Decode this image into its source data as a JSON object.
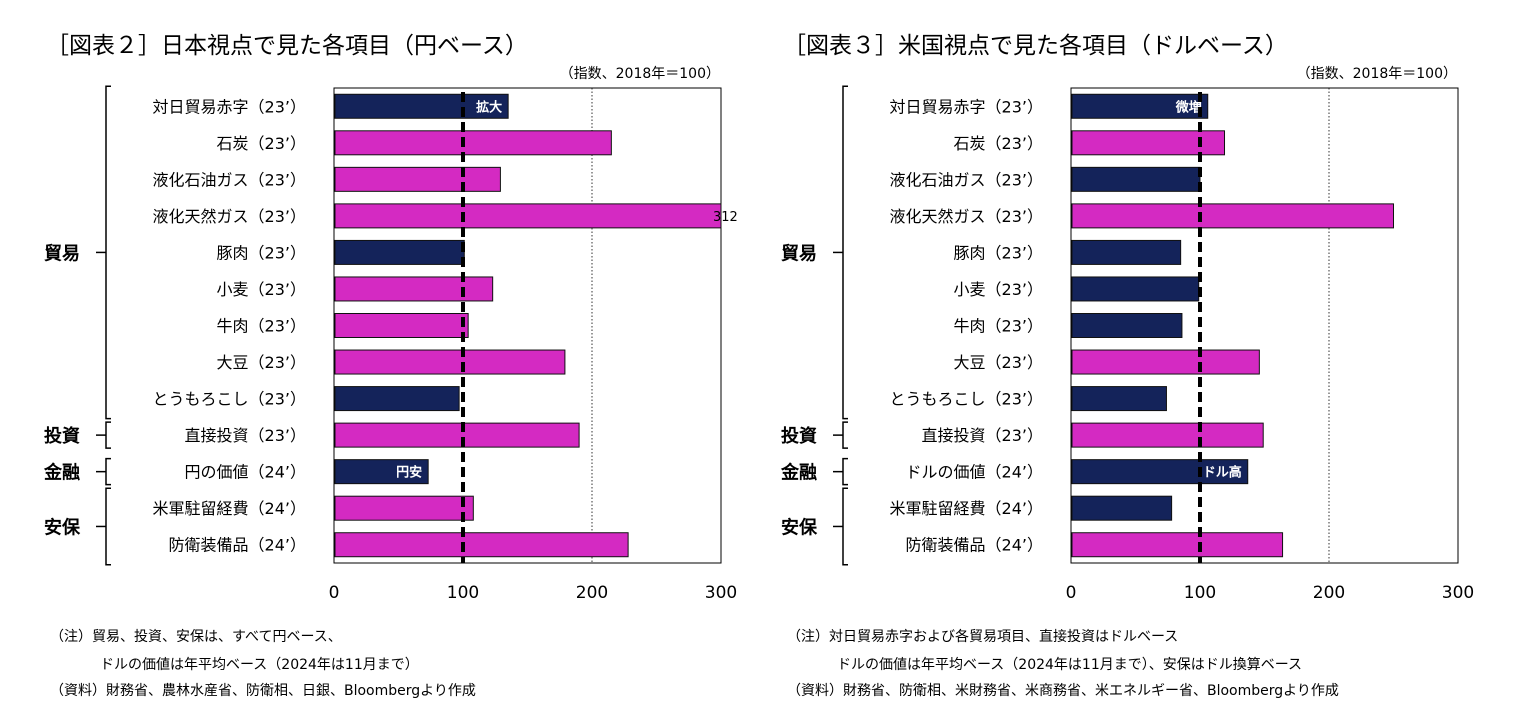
{
  "colors": {
    "navy": "#14235a",
    "magenta": "#d42ac2",
    "baseline": "#000000"
  },
  "chart_data": [
    {
      "type": "bar",
      "orientation": "horizontal",
      "title": "［図表２］日本視点で見た各項目（円ベース）",
      "unit_note": "（指数、2018年＝100）",
      "xlim": [
        0,
        300
      ],
      "xticks": [
        "0",
        "100",
        "200",
        "300"
      ],
      "reference_line": 100,
      "gridlines": [
        200
      ],
      "categories": [
        "対日貿易赤字（23’）",
        "石炭（23’）",
        "液化石油ガス（23’）",
        "液化天然ガス（23’）",
        "豚肉（23’）",
        "小麦（23’）",
        "牛肉（23’）",
        "大豆（23’）",
        "とうもろこし（23’）",
        "直接投資（23’）",
        "円の価値（24’）",
        "米軍駐留経費（24’）",
        "防衛装備品（24’）"
      ],
      "values": [
        135,
        215,
        129,
        312,
        101,
        123,
        104,
        179,
        97,
        190,
        73,
        108,
        228
      ],
      "colors": [
        "navy",
        "magenta",
        "magenta",
        "magenta",
        "navy",
        "magenta",
        "magenta",
        "magenta",
        "navy",
        "magenta",
        "navy",
        "magenta",
        "magenta"
      ],
      "value_labels": [
        {
          "index": 3,
          "text": "312"
        }
      ],
      "bar_labels": [
        {
          "index": 0,
          "text": "拡大"
        },
        {
          "index": 10,
          "text": "円安"
        }
      ],
      "groups": [
        {
          "label": "貿易",
          "from": 0,
          "to": 8
        },
        {
          "label": "投資",
          "from": 9,
          "to": 9
        },
        {
          "label": "金融",
          "from": 10,
          "to": 10
        },
        {
          "label": "安保",
          "from": 11,
          "to": 12
        }
      ],
      "notes": [
        "（注）貿易、投資、安保は、すべて円ベース、",
        "ドルの価値は年平均ベース（2024年は11月まで）",
        "（資料）財務省、農林水産省、防衛相、日銀、Bloombergより作成"
      ]
    },
    {
      "type": "bar",
      "orientation": "horizontal",
      "title": "［図表３］米国視点で見た各項目（ドルベース）",
      "unit_note": "（指数、2018年＝100）",
      "xlim": [
        0,
        300
      ],
      "xticks": [
        "0",
        "100",
        "200",
        "300"
      ],
      "reference_line": 100,
      "gridlines": [
        200
      ],
      "categories": [
        "対日貿易赤字（23’）",
        "石炭（23’）",
        "液化石油ガス（23’）",
        "液化天然ガス（23’）",
        "豚肉（23’）",
        "小麦（23’）",
        "牛肉（23’）",
        "大豆（23’）",
        "とうもろこし（23’）",
        "直接投資（23’）",
        "ドルの価値（24’）",
        "米軍駐留経費（24’）",
        "防衛装備品（24’）"
      ],
      "values": [
        106,
        119,
        100,
        250,
        85,
        99,
        86,
        146,
        74,
        149,
        137,
        78,
        164
      ],
      "colors": [
        "navy",
        "magenta",
        "navy",
        "magenta",
        "navy",
        "navy",
        "navy",
        "magenta",
        "navy",
        "magenta",
        "navy",
        "navy",
        "magenta"
      ],
      "value_labels": [],
      "bar_labels": [
        {
          "index": 0,
          "text": "微増"
        },
        {
          "index": 10,
          "text": "ドル高"
        }
      ],
      "groups": [
        {
          "label": "貿易",
          "from": 0,
          "to": 8
        },
        {
          "label": "投資",
          "from": 9,
          "to": 9
        },
        {
          "label": "金融",
          "from": 10,
          "to": 10
        },
        {
          "label": "安保",
          "from": 11,
          "to": 12
        }
      ],
      "notes": [
        "（注）対日貿易赤字および各貿易項目、直接投資はドルベース",
        "ドルの価値は年平均ベース（2024年は11月まで）、安保はドル換算ベース",
        "（資料）財務省、防衛相、米財務省、米商務省、米エネルギー省、Bloombergより作成"
      ]
    }
  ]
}
